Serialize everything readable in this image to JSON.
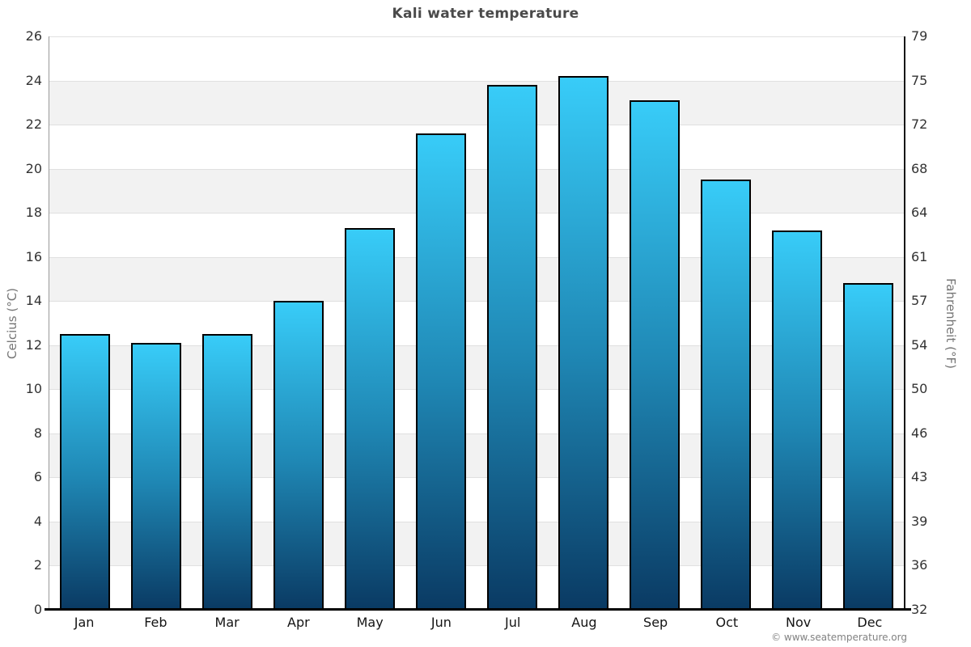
{
  "header": {
    "title": "Kali water temperature"
  },
  "watermark": "© www.seatemperature.org",
  "chart_data": {
    "type": "bar",
    "title": "Kali water temperature",
    "categories": [
      "Jan",
      "Feb",
      "Mar",
      "Apr",
      "May",
      "Jun",
      "Jul",
      "Aug",
      "Sep",
      "Oct",
      "Nov",
      "Dec"
    ],
    "values": [
      12.5,
      12.1,
      12.5,
      14.0,
      17.3,
      21.6,
      23.8,
      24.2,
      23.1,
      19.5,
      17.2,
      14.8
    ],
    "unit": "°C",
    "ylabel_left": "Celcius (°C)",
    "ylabel_right": "Fahrenheit (°F)",
    "ylim_celsius": [
      0,
      26
    ],
    "left_ticks": [
      0,
      2,
      4,
      6,
      8,
      10,
      12,
      14,
      16,
      18,
      20,
      22,
      24,
      26
    ],
    "right_ticks": [
      "32",
      "36",
      "39",
      "43",
      "46",
      "50",
      "54",
      "57",
      "61",
      "64",
      "68",
      "72",
      "75",
      "79"
    ],
    "grid": "horizontal alternating bands, gridline every 2°C",
    "legend": "none",
    "colors": {
      "bar_gradient_top": "#38ccf8",
      "bar_gradient_bottom": "#0a3a63",
      "bar_border": "#000000",
      "band_gray": "#f2f2f2",
      "band_white": "#ffffff",
      "gridline": "#e0e0e0",
      "axis_bottom": "#000000",
      "axis_left": "#9a9a9a",
      "axis_right": "#161616",
      "title_text": "#4a4a4a",
      "tick_text": "#333333",
      "axis_title_text": "#757575",
      "watermark_text": "#828282"
    }
  }
}
